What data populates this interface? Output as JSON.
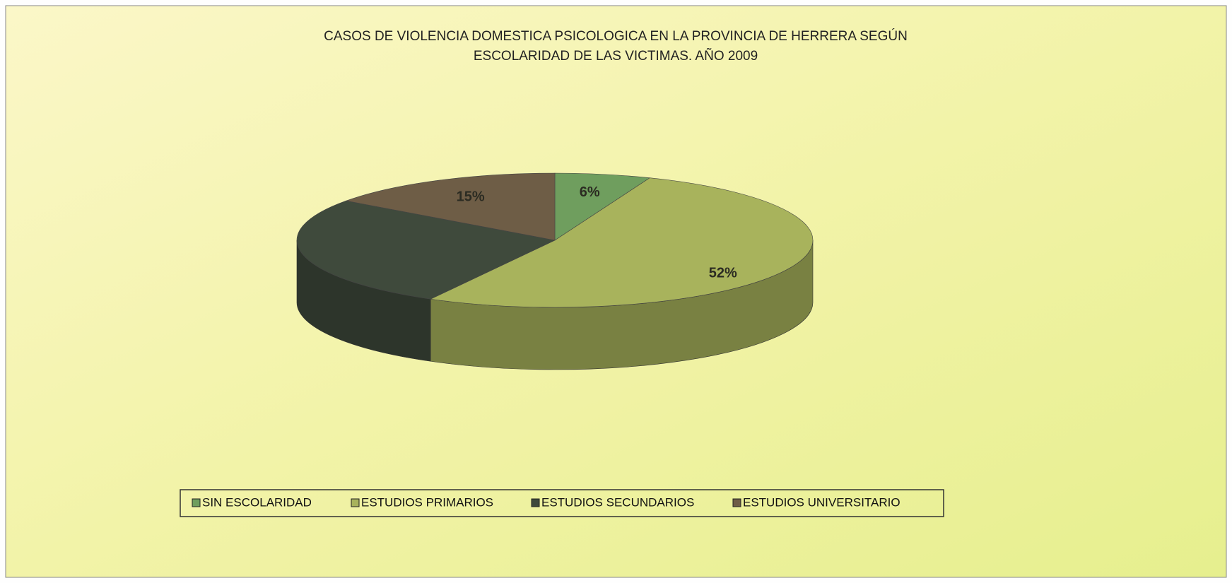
{
  "chart_data": {
    "type": "pie",
    "title": [
      "CASOS DE VIOLENCIA DOMESTICA PSICOLOGICA EN LA PROVINCIA DE HERRERA SEGÚN",
      "ESCOLARIDAD DE LAS VICTIMAS. AÑO 2009"
    ],
    "categories": [
      "SIN ESCOLARIDAD",
      "ESTUDIOS PRIMARIOS",
      "ESTUDIOS SECUNDARIOS",
      "ESTUDIOS UNIVERSITARIO"
    ],
    "values": [
      6,
      52,
      27,
      15
    ],
    "value_labels": [
      "6%",
      "52%",
      null,
      "15%"
    ],
    "colors": [
      "#6f9e5e",
      "#a8b35c",
      "#3f4a3c",
      "#6e5d46"
    ],
    "legend": "bottom"
  }
}
